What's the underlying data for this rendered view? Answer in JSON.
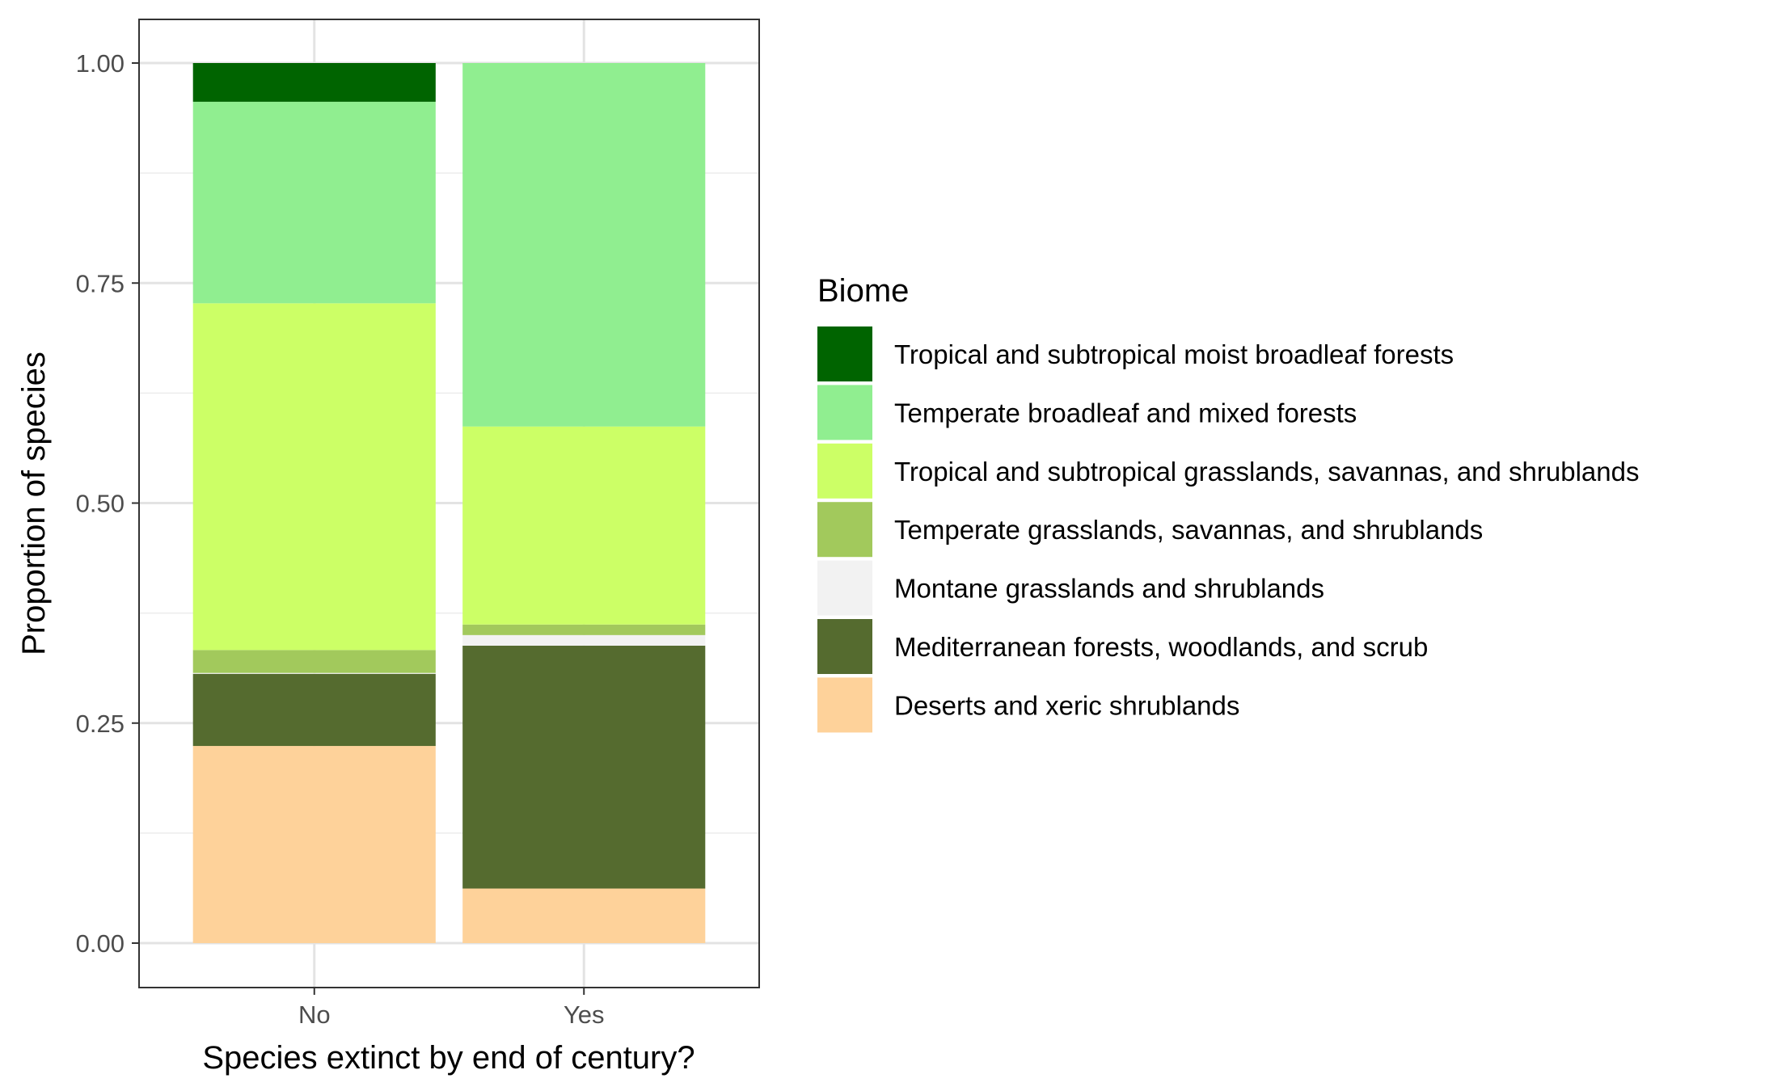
{
  "chart_data": {
    "type": "bar",
    "stacked": true,
    "title": "",
    "xlabel": "Species extinct by end of century?",
    "ylabel": "Proportion of species",
    "ylim": [
      0,
      1
    ],
    "yticks": [
      "0.00",
      "0.25",
      "0.50",
      "0.75",
      "1.00"
    ],
    "categories": [
      "No",
      "Yes"
    ],
    "grid": true,
    "legend_title": "Biome",
    "legend_position": "right",
    "series": [
      {
        "name": "Deserts and xeric shrublands",
        "color": "#FED29A",
        "values": [
          0.224,
          0.062
        ]
      },
      {
        "name": "Mediterranean forests, woodlands, and scrub",
        "color": "#556B2F",
        "values": [
          0.082,
          0.276
        ]
      },
      {
        "name": "Montane grasslands and shrublands",
        "color": "#F2F2F2",
        "values": [
          0.001,
          0.012
        ]
      },
      {
        "name": "Temperate grasslands, savannas, and shrublands",
        "color": "#A2C95C",
        "values": [
          0.026,
          0.012
        ]
      },
      {
        "name": "Tropical and subtropical grasslands, savannas, and shrublands",
        "color": "#CCFF66",
        "values": [
          0.394,
          0.225
        ]
      },
      {
        "name": "Temperate broadleaf and mixed forests",
        "color": "#90EE90",
        "values": [
          0.229,
          0.413
        ]
      },
      {
        "name": "Tropical and subtropical moist broadleaf forests",
        "color": "#006400",
        "values": [
          0.044,
          0.0
        ]
      }
    ],
    "legend_order": [
      "Tropical and subtropical moist broadleaf forests",
      "Temperate broadleaf and mixed forests",
      "Tropical and subtropical grasslands, savannas, and shrublands",
      "Temperate grasslands, savannas, and shrublands",
      "Montane grasslands and shrublands",
      "Mediterranean forests, woodlands, and scrub",
      "Deserts and xeric shrublands"
    ]
  }
}
